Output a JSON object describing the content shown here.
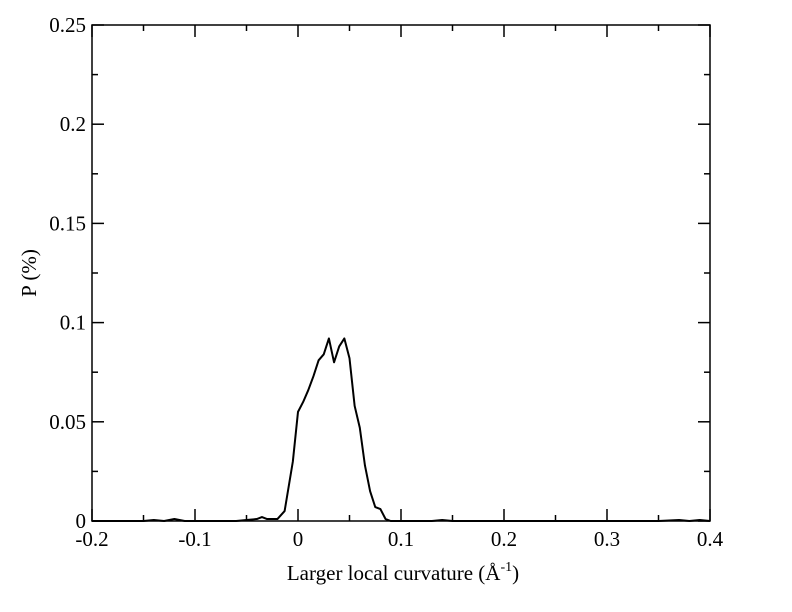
{
  "chart_data": {
    "type": "line",
    "title": "",
    "xlabel": "Larger local curvature (Å",
    "xlabel_superscript": "-1",
    "xlabel_suffix": ")",
    "ylabel": "P (%)",
    "xlim": [
      -0.2,
      0.4
    ],
    "ylim": [
      0,
      0.25
    ],
    "xticks": [
      "-0.2",
      "-0.1",
      "0",
      "0.1",
      "0.2",
      "0.3",
      "0.4"
    ],
    "yticks": [
      "0",
      "0.05",
      "0.1",
      "0.15",
      "0.2",
      "0.25"
    ],
    "grid": false,
    "legend": "none",
    "line_color": "#000000",
    "series": [
      {
        "x": [
          -0.2,
          -0.18,
          -0.17,
          -0.16,
          -0.15,
          -0.14,
          -0.13,
          -0.12,
          -0.11,
          -0.1,
          -0.09,
          -0.08,
          -0.07,
          -0.06,
          -0.05,
          -0.04,
          -0.035,
          -0.03,
          -0.02,
          -0.013,
          -0.005,
          0.0,
          0.005,
          0.01,
          0.015,
          0.02,
          0.025,
          0.03,
          0.035,
          0.04,
          0.045,
          0.05,
          0.055,
          0.06,
          0.065,
          0.07,
          0.075,
          0.08,
          0.085,
          0.09,
          0.095,
          0.1,
          0.105,
          0.11,
          0.115,
          0.12,
          0.13,
          0.14,
          0.15,
          0.16,
          0.18,
          0.2,
          0.25,
          0.3,
          0.35,
          0.37,
          0.38,
          0.39,
          0.4
        ],
        "y": [
          0.0,
          0.0,
          0.0,
          0.0,
          0.0,
          0.0005,
          0.0,
          0.001,
          0.0,
          0.0,
          0.0,
          0.0,
          0.0,
          0.0,
          0.0005,
          0.001,
          0.002,
          0.001,
          0.001,
          0.005,
          0.03,
          0.055,
          0.06,
          0.066,
          0.073,
          0.081,
          0.084,
          0.092,
          0.08,
          0.088,
          0.092,
          0.082,
          0.058,
          0.047,
          0.028,
          0.015,
          0.007,
          0.006,
          0.001,
          0.0,
          0.0,
          0.0,
          0.0,
          0.0,
          0.0,
          0.0,
          0.0,
          0.0005,
          0.0,
          0.0,
          0.0,
          0.0,
          0.0,
          0.0,
          0.0,
          0.0005,
          0.0,
          0.0005,
          0.0
        ]
      }
    ]
  }
}
